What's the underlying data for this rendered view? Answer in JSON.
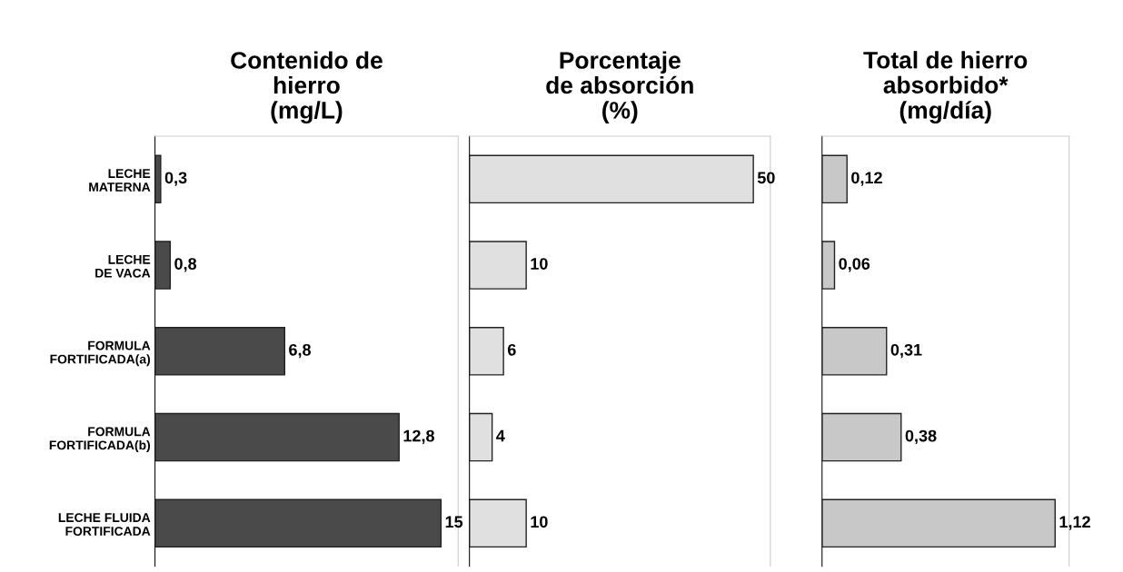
{
  "chart_data": [
    {
      "type": "bar",
      "orientation": "horizontal",
      "title": "Contenido de\nhierro\n(mg/L)",
      "categories": [
        "LECHE\nMATERNA",
        "LECHE\nDE VACA",
        "FORMULA\nFORTIFICADA(a)",
        "FORMULA\nFORTIFICADA(b)",
        "LECHE FLUIDA\nFORTIFICADA"
      ],
      "values": [
        0.3,
        0.8,
        6.8,
        12.8,
        15
      ],
      "value_labels": [
        "0,3",
        "0,8",
        "6,8",
        "12,8",
        "15"
      ],
      "color": "#4a4a4a",
      "tick_labels": "y",
      "grid": false,
      "legend": false
    },
    {
      "type": "bar",
      "orientation": "horizontal",
      "title": "Porcentaje\nde absorción\n(%)",
      "categories": [
        null,
        null,
        null,
        null,
        null
      ],
      "values": [
        50,
        10,
        6,
        4,
        10
      ],
      "value_labels": [
        "50",
        "10",
        "6",
        "4",
        "10"
      ],
      "color": "#e0e0e0",
      "tick_labels": false,
      "grid": false,
      "legend": false
    },
    {
      "type": "bar",
      "orientation": "horizontal",
      "title": "Total de hierro\nabsorbido*\n(mg/día)",
      "categories": [
        null,
        null,
        null,
        null,
        null
      ],
      "values": [
        0.12,
        0.06,
        0.31,
        0.38,
        1.12
      ],
      "value_labels": [
        "0,12",
        "0,06",
        "0,31",
        "0,38",
        "1,12"
      ],
      "color": "#c8c8c8",
      "tick_labels": false,
      "grid": false,
      "legend": false
    }
  ]
}
